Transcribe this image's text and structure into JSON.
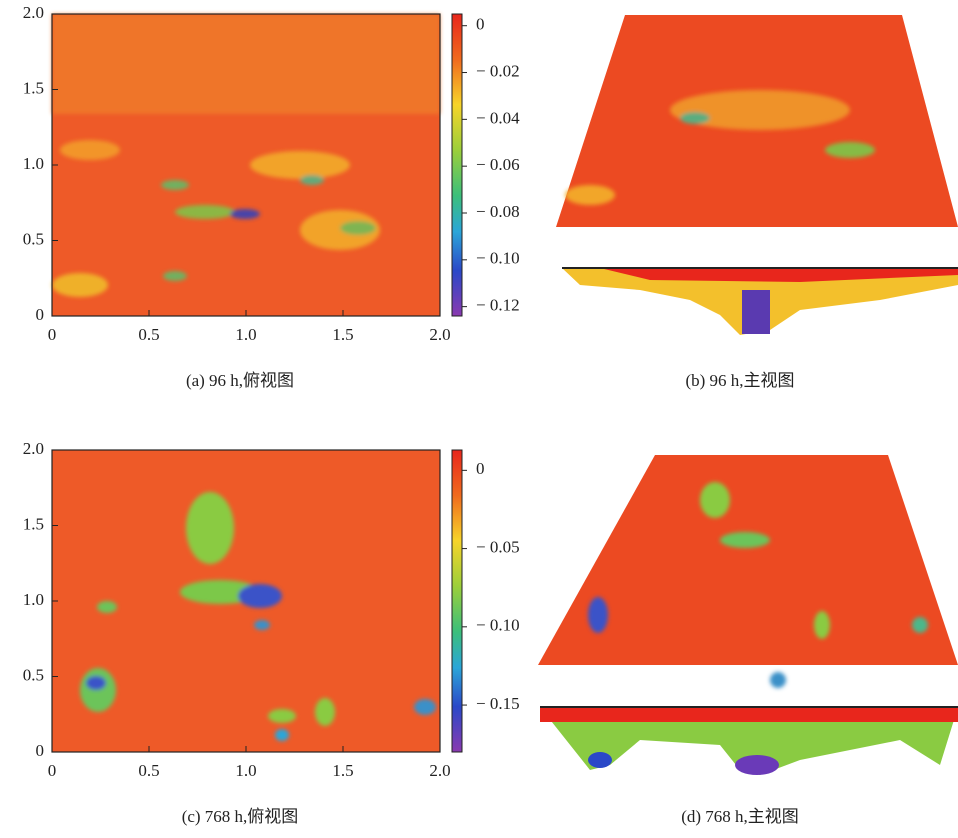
{
  "chart_data": [
    {
      "type": "heatmap",
      "caption": "(a)  96 h,俯视图",
      "xlim": [
        0,
        2
      ],
      "ylim": [
        0,
        2
      ],
      "xticks": [
        0,
        0.5,
        {
          "value": 1,
          "label": "1.0"
        },
        1.5,
        {
          "value": 2,
          "label": "2.0"
        }
      ],
      "yticks": [
        0,
        0.5,
        {
          "value": 1,
          "label": "1.0"
        },
        1.5,
        {
          "value": 2,
          "label": "2.0"
        }
      ],
      "colorbar_lim": [
        -0.124,
        0.005
      ],
      "colorbar_ticks": [
        0,
        {
          "value": -0.02,
          "label": "− 0.02"
        },
        {
          "value": -0.04,
          "label": "− 0.04"
        },
        {
          "value": -0.06,
          "label": "− 0.06"
        },
        {
          "value": -0.08,
          "label": "− 0.08"
        },
        {
          "value": -0.1,
          "label": "− 0.10"
        },
        {
          "value": -0.12,
          "label": "− 0.12"
        }
      ]
    },
    {
      "type": "surface",
      "caption": "(b)  96 h,主视图"
    },
    {
      "type": "heatmap",
      "caption": "(c)  768 h,俯视图",
      "xlim": [
        0,
        2
      ],
      "ylim": [
        0,
        2
      ],
      "xticks": [
        0,
        0.5,
        {
          "value": 1,
          "label": "1.0"
        },
        1.5,
        {
          "value": 2,
          "label": "2.0"
        }
      ],
      "yticks": [
        0,
        0.5,
        {
          "value": 1,
          "label": "1.0"
        },
        1.5,
        {
          "value": 2,
          "label": "2.0"
        }
      ],
      "colorbar_lim": [
        -0.18,
        0.013
      ],
      "colorbar_ticks": [
        0,
        {
          "value": -0.05,
          "label": "− 0.05"
        },
        {
          "value": -0.1,
          "label": "− 0.10"
        },
        {
          "value": -0.15,
          "label": "− 0.15"
        }
      ]
    },
    {
      "type": "surface",
      "caption": "(d)  768 h,主视图"
    }
  ]
}
